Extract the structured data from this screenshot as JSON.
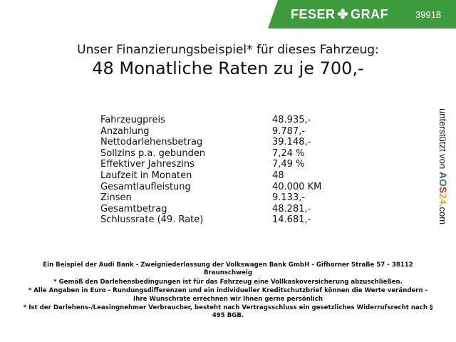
{
  "header": {
    "brand_left": "FESER",
    "brand_right": "GRAF",
    "code": "39918",
    "brand_color": "#3d9b3d"
  },
  "title": {
    "line1": "Unser Finanzierungsbeispiel* für dieses Fahrzeug:",
    "line2": "48 Monatliche Raten zu je 700,-"
  },
  "rows": [
    {
      "label": "Fahrzeugpreis",
      "value": "48.935,-"
    },
    {
      "label": "Anzahlung",
      "value": "9.787,-"
    },
    {
      "label": "Nettodarlehensbetrag",
      "value": "39.148,-"
    },
    {
      "label": "Sollzins p.a. gebunden",
      "value": "7,24 %"
    },
    {
      "label": "Effektiver Jahreszins",
      "value": "7,49 %"
    },
    {
      "label": "Laufzeit in Monaten",
      "value": "48"
    },
    {
      "label": "Gesamtlaufleistung",
      "value": "40.000 KM"
    },
    {
      "label": "Zinsen",
      "value": "9.133,-"
    },
    {
      "label": "Gesamtbetrag",
      "value": "48.281,-"
    },
    {
      "label": "Schlussrate (49. Rate)",
      "value": "14.681,-"
    }
  ],
  "side": {
    "prefix": "unterstützt von",
    "logo": "AOS24",
    "suffix": ".com"
  },
  "footer": [
    "Ein Beispiel der Audi Bank - Zweigniederlassung der Volkswagen Bank GmbH - Gifhorner Straße 57 - 38112 Braunschweig",
    "* Gemäß den Darlehensbedingungen ist für das Fahrzeug eine Vollkaskoversicherung abzuschließen.",
    "* Alle Angaben in Euro - Rundungsdifferenzen und ein individueller Kreditschutzbrief können die Werte verändern - Ihre Wunschrate errechnen wir Ihnen gerne persönlich",
    "* Ist der Darlehens-/Leasingnehmer Verbraucher, besteht nach Vertragsschluss ein gesetzliches Widerrufsrecht nach § 495 BGB."
  ]
}
